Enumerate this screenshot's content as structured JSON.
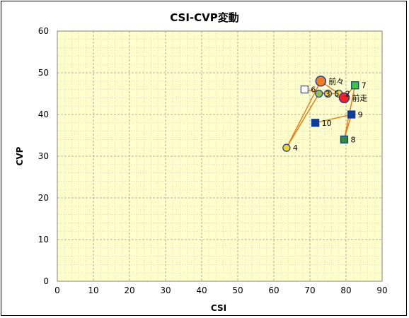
{
  "chart_data": {
    "type": "scatter",
    "title": "CSI-CVP変動",
    "xlabel": "CSI",
    "ylabel": "CVP",
    "xlim": [
      0,
      90
    ],
    "ylim": [
      0,
      60
    ],
    "xticks": [
      0,
      10,
      20,
      30,
      40,
      50,
      60,
      70,
      80,
      90
    ],
    "yticks": [
      0,
      10,
      20,
      30,
      40,
      50,
      60
    ],
    "grid": true,
    "colors": {
      "plot_background": "#ffffcc",
      "major_grid": "#9a9a9a",
      "minor_grid": "#c8c8c8",
      "path_line": "#f07d1a",
      "square_dark": "#0c3d9e",
      "square_green_fill": "#3cc63c",
      "square_green_border": "#0c3d9e",
      "square_open_border": "#1a66cc",
      "circle_fill": "#f7d51e",
      "circle_border": "#1a3fb4",
      "circle_green": "#8dc63f",
      "circle_orange": "#f07d1a",
      "circle_red": "#ff1e1e"
    },
    "path": [
      "10",
      "9",
      "8",
      "7",
      "前走",
      "前々",
      "4",
      "3",
      "2",
      "5",
      "6"
    ],
    "points": [
      {
        "label": "前走",
        "x": 79.5,
        "y": 44,
        "marker": "circle-large",
        "fill": "#ff1e1e",
        "stroke": "#1a3fb4"
      },
      {
        "label": "前々",
        "x": 73,
        "y": 48,
        "marker": "circle-large",
        "fill": "#f07d1a",
        "stroke": "#1a3fb4"
      },
      {
        "label": "2",
        "x": 78,
        "y": 45,
        "marker": "circle",
        "fill": "#f7d51e",
        "stroke": "#1a3fb4"
      },
      {
        "label": "3",
        "x": 72.5,
        "y": 45,
        "marker": "circle",
        "fill": "#8dc63f",
        "stroke": "#1a3fb4"
      },
      {
        "label": "4",
        "x": 63.5,
        "y": 32,
        "marker": "circle",
        "fill": "#f7d51e",
        "stroke": "#1a3fb4"
      },
      {
        "label": "5",
        "x": 75,
        "y": 45,
        "marker": "circle",
        "fill": "#f7d51e",
        "stroke": "#1a3fb4"
      },
      {
        "label": "6",
        "x": 68.5,
        "y": 46,
        "marker": "square",
        "fill": "#ffffff",
        "stroke": "#1a66cc"
      },
      {
        "label": "7",
        "x": 82.5,
        "y": 47,
        "marker": "square",
        "fill": "#3cc63c",
        "stroke": "#0c3d9e"
      },
      {
        "label": "8",
        "x": 79.5,
        "y": 34,
        "marker": "square",
        "fill": "#2e8b3a",
        "stroke": "#0c3d9e"
      },
      {
        "label": "9",
        "x": 81.5,
        "y": 40,
        "marker": "square",
        "fill": "#0c3d9e",
        "stroke": "#0c3d9e"
      },
      {
        "label": "10",
        "x": 71.5,
        "y": 38,
        "marker": "square",
        "fill": "#0c3d9e",
        "stroke": "#0c3d9e"
      }
    ]
  }
}
